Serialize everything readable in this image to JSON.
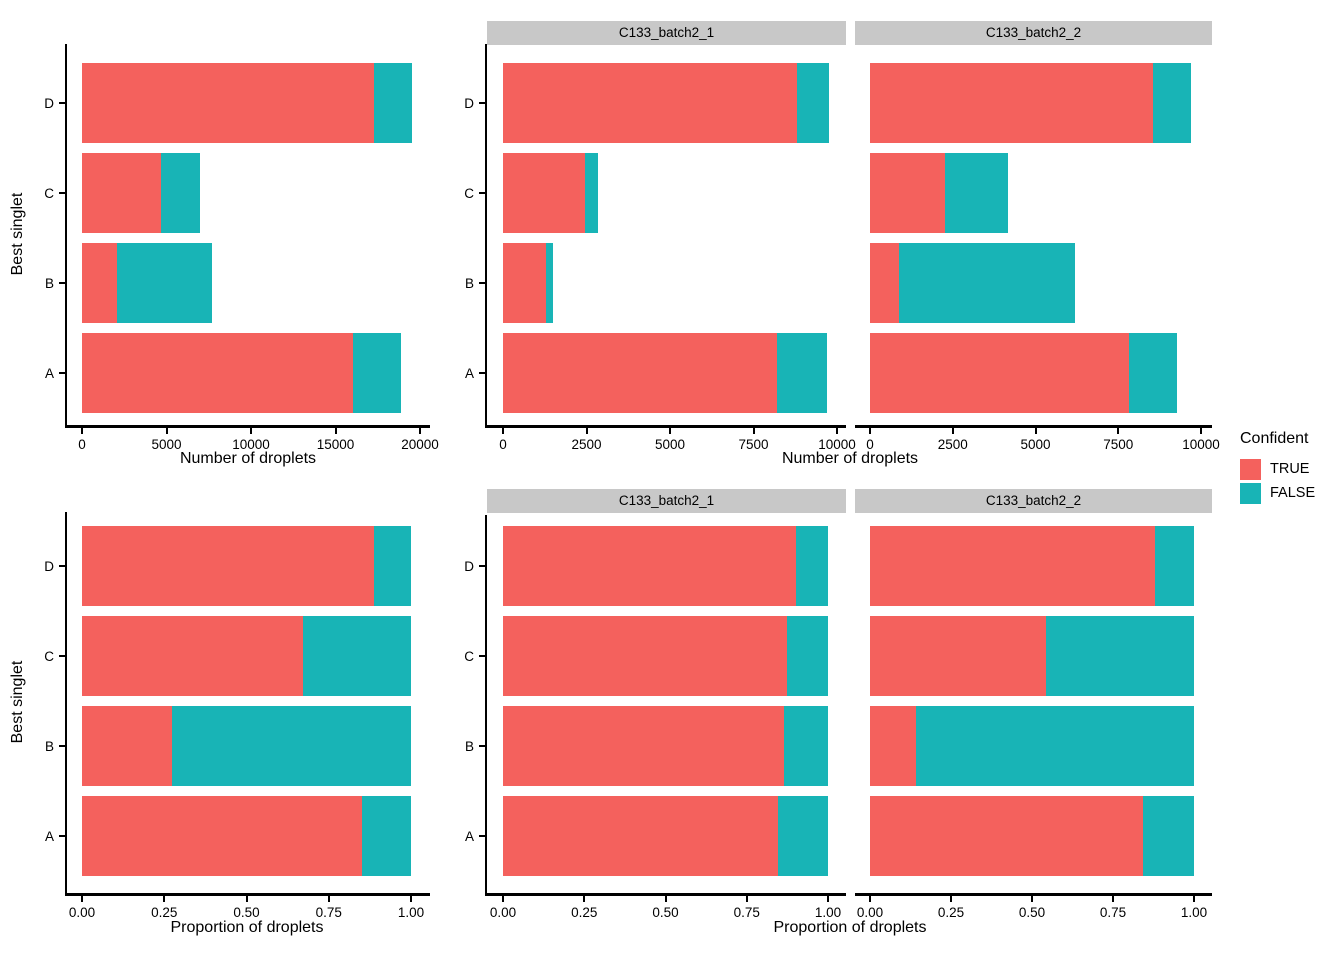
{
  "figure": {
    "facet_titles": [
      "C133_batch2_1",
      "C133_batch2_2"
    ],
    "legend": {
      "title": "Confident",
      "entries": [
        {
          "label": "TRUE",
          "color": "#F4615D"
        },
        {
          "label": "FALSE",
          "color": "#18B4B6"
        }
      ]
    },
    "colors": {
      "true_fill": "#F4615D",
      "false_fill": "#18B4B6",
      "strip_bg": "#C8C8C8",
      "axis": "#000000"
    }
  },
  "chart_data": [
    {
      "id": "all-count",
      "type": "bar",
      "orientation": "horizontal",
      "stacked": true,
      "facet": "",
      "categories": [
        "D",
        "C",
        "B",
        "A"
      ],
      "series": [
        {
          "name": "TRUE",
          "values": [
            17300,
            4700,
            2100,
            16050
          ]
        },
        {
          "name": "FALSE",
          "values": [
            2200,
            2300,
            5600,
            2800
          ]
        }
      ],
      "xlabel": "Number of droplets",
      "ylabel": "Best singlet",
      "xlim": [
        0,
        20000
      ],
      "xticks": [
        0,
        5000,
        10000,
        15000,
        20000
      ],
      "xtick_labels": [
        "0",
        "5000",
        "10000",
        "15000",
        "20000"
      ],
      "grid": false
    },
    {
      "id": "batch1-count",
      "type": "bar",
      "orientation": "horizontal",
      "stacked": true,
      "facet": "C133_batch2_1",
      "categories": [
        "D",
        "C",
        "B",
        "A"
      ],
      "series": [
        {
          "name": "TRUE",
          "values": [
            8800,
            2470,
            1300,
            8200
          ]
        },
        {
          "name": "FALSE",
          "values": [
            950,
            360,
            200,
            1500
          ]
        }
      ],
      "xlabel": "Number of droplets",
      "ylabel": "",
      "xlim": [
        0,
        10000
      ],
      "xticks": [
        0,
        2500,
        5000,
        7500,
        10000
      ],
      "xtick_labels": [
        "0",
        "2500",
        "5000",
        "7500",
        "10000"
      ],
      "grid": false
    },
    {
      "id": "batch2-count",
      "type": "bar",
      "orientation": "horizontal",
      "stacked": true,
      "facet": "C133_batch2_2",
      "categories": [
        "D",
        "C",
        "B",
        "A"
      ],
      "series": [
        {
          "name": "TRUE",
          "values": [
            8550,
            2270,
            880,
            7830
          ]
        },
        {
          "name": "FALSE",
          "values": [
            1150,
            1900,
            5320,
            1450
          ]
        }
      ],
      "xlabel": "Number of droplets",
      "ylabel": "",
      "xlim": [
        0,
        10000
      ],
      "xticks": [
        0,
        2500,
        5000,
        7500,
        10000
      ],
      "xtick_labels": [
        "0",
        "2500",
        "5000",
        "7500",
        "10000"
      ],
      "grid": false
    },
    {
      "id": "all-prop",
      "type": "bar",
      "orientation": "horizontal",
      "stacked": true,
      "facet": "",
      "categories": [
        "D",
        "C",
        "B",
        "A"
      ],
      "series": [
        {
          "name": "TRUE",
          "values": [
            0.887,
            0.671,
            0.273,
            0.851
          ]
        },
        {
          "name": "FALSE",
          "values": [
            0.113,
            0.329,
            0.727,
            0.149
          ]
        }
      ],
      "xlabel": "Proportion of droplets",
      "ylabel": "Best singlet",
      "xlim": [
        0,
        1
      ],
      "xticks": [
        0,
        0.25,
        0.5,
        0.75,
        1
      ],
      "xtick_labels": [
        "0.00",
        "0.25",
        "0.50",
        "0.75",
        "1.00"
      ],
      "grid": false
    },
    {
      "id": "batch1-prop",
      "type": "bar",
      "orientation": "horizontal",
      "stacked": true,
      "facet": "C133_batch2_1",
      "categories": [
        "D",
        "C",
        "B",
        "A"
      ],
      "series": [
        {
          "name": "TRUE",
          "values": [
            0.903,
            0.873,
            0.865,
            0.845
          ]
        },
        {
          "name": "FALSE",
          "values": [
            0.097,
            0.127,
            0.135,
            0.155
          ]
        }
      ],
      "xlabel": "Proportion of droplets",
      "ylabel": "",
      "xlim": [
        0,
        1
      ],
      "xticks": [
        0,
        0.25,
        0.5,
        0.75,
        1
      ],
      "xtick_labels": [
        "0.00",
        "0.25",
        "0.50",
        "0.75",
        "1.00"
      ],
      "grid": false
    },
    {
      "id": "batch2-prop",
      "type": "bar",
      "orientation": "horizontal",
      "stacked": true,
      "facet": "C133_batch2_2",
      "categories": [
        "D",
        "C",
        "B",
        "A"
      ],
      "series": [
        {
          "name": "TRUE",
          "values": [
            0.881,
            0.544,
            0.142,
            0.844
          ]
        },
        {
          "name": "FALSE",
          "values": [
            0.119,
            0.456,
            0.858,
            0.156
          ]
        }
      ],
      "xlabel": "Proportion of droplets",
      "ylabel": "",
      "xlim": [
        0,
        1
      ],
      "xticks": [
        0,
        0.25,
        0.5,
        0.75,
        1
      ],
      "xtick_labels": [
        "0.00",
        "0.25",
        "0.50",
        "0.75",
        "1.00"
      ],
      "grid": false
    }
  ]
}
